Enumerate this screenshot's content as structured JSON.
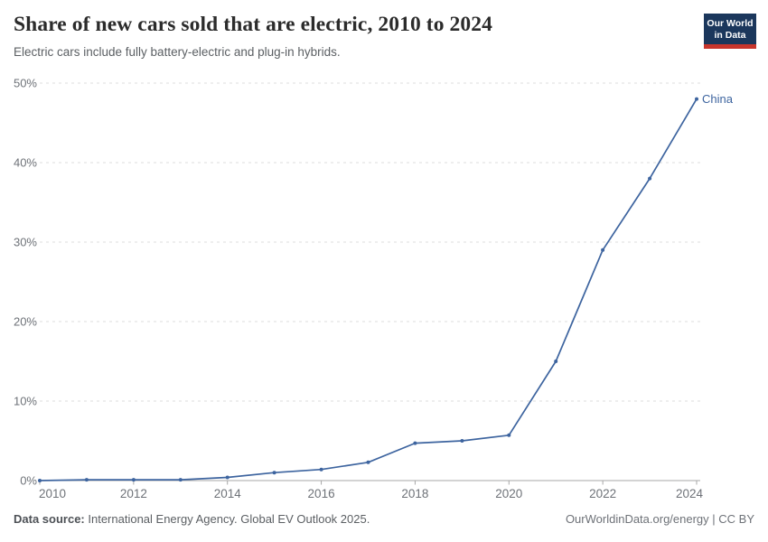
{
  "header": {
    "title": "Share of new cars sold that are electric, 2010 to 2024",
    "subtitle": "Electric cars include fully battery-electric and plug-in hybrids.",
    "logo": {
      "line1": "Our World",
      "line2": "in Data",
      "bg_color": "#1b375c",
      "stripe_color": "#c7352c"
    }
  },
  "chart_data": {
    "type": "line",
    "title": "Share of new cars sold that are electric, 2010 to 2024",
    "subtitle": "Electric cars include fully battery-electric and plug-in hybrids.",
    "xlabel": "",
    "ylabel": "",
    "xlim": [
      2010,
      2024
    ],
    "ylim": [
      0,
      50
    ],
    "x_ticks": [
      2010,
      2012,
      2014,
      2016,
      2018,
      2020,
      2022,
      2024
    ],
    "y_ticks": [
      0,
      10,
      20,
      30,
      40,
      50
    ],
    "y_suffix": "%",
    "grid": "horizontal-dashed",
    "legend_position": "end-of-line",
    "series": [
      {
        "name": "China",
        "color": "#3d649f",
        "x": [
          2010,
          2011,
          2012,
          2013,
          2014,
          2015,
          2016,
          2017,
          2018,
          2019,
          2020,
          2021,
          2022,
          2023,
          2024
        ],
        "values": [
          0.0,
          0.1,
          0.1,
          0.1,
          0.4,
          1.0,
          1.4,
          2.3,
          4.7,
          5.0,
          5.7,
          15,
          29,
          38,
          48
        ]
      }
    ]
  },
  "footer": {
    "source_label": "Data source:",
    "source_text": " International Energy Agency. Global EV Outlook 2025.",
    "credit": "OurWorldinData.org/energy | CC BY"
  },
  "colors": {
    "line": "#3d649f",
    "grid": "#dcdcdc",
    "axis": "#a7a7a7",
    "tick_label": "#6e7278"
  }
}
